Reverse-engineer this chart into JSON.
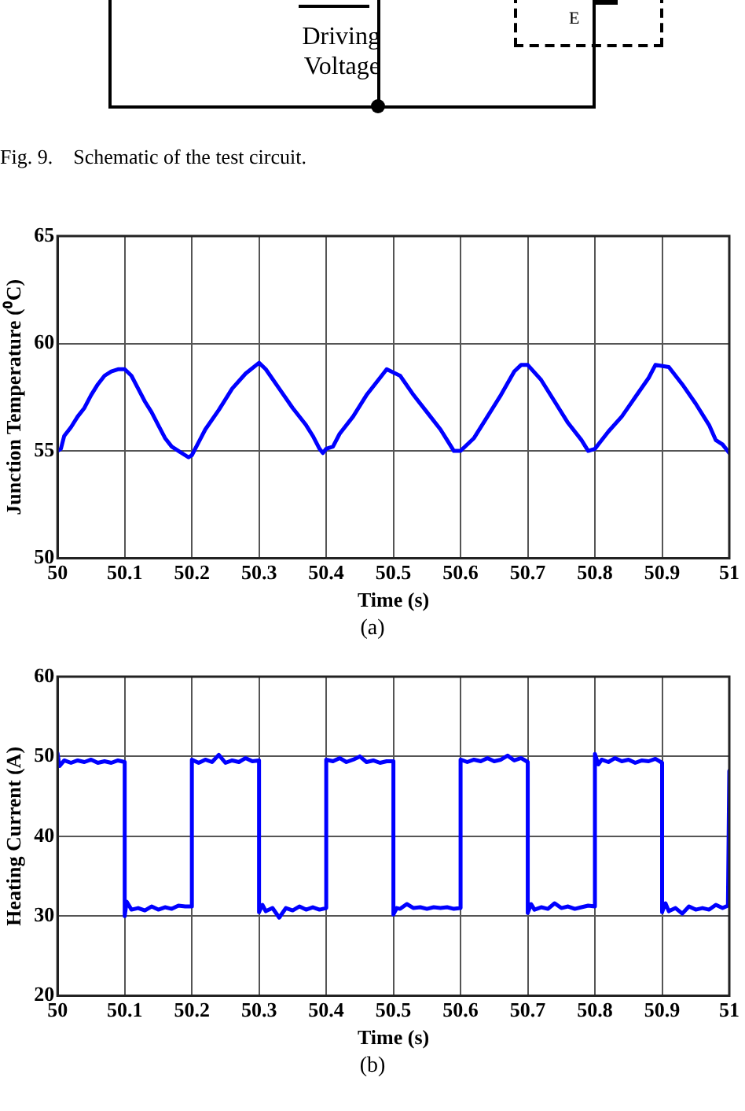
{
  "chart_data": [
    {
      "type": "other",
      "annotations": [
        "Driving Voltage",
        "E",
        "Fig. 9.    Schematic of the test circuit."
      ]
    },
    {
      "type": "line",
      "xlabel": "Time (s)",
      "ylabel": "Junction Temperature (⁰C)",
      "annotations": [
        "(a)"
      ],
      "grid": true,
      "xlim": [
        50,
        51
      ],
      "xticks": [
        50,
        50.1,
        50.2,
        50.3,
        50.4,
        50.5,
        50.6,
        50.7,
        50.8,
        50.9,
        51
      ],
      "ylim": [
        50,
        65
      ],
      "yticks": [
        50,
        55,
        60,
        65
      ],
      "x": [
        50,
        50.005,
        50.01,
        50.02,
        50.03,
        50.04,
        50.05,
        50.06,
        50.07,
        50.08,
        50.09,
        50.1,
        50.11,
        50.12,
        50.13,
        50.14,
        50.15,
        50.16,
        50.17,
        50.18,
        50.195,
        50.2,
        50.21,
        50.22,
        50.24,
        50.26,
        50.28,
        50.3,
        50.31,
        50.33,
        50.35,
        50.37,
        50.38,
        50.39,
        50.395,
        50.4,
        50.41,
        50.42,
        50.44,
        50.46,
        50.48,
        50.49,
        50.51,
        50.53,
        50.55,
        50.57,
        50.58,
        50.59,
        50.6,
        50.62,
        50.64,
        50.66,
        50.68,
        50.69,
        50.7,
        50.72,
        50.74,
        50.76,
        50.78,
        50.79,
        50.8,
        50.82,
        50.84,
        50.86,
        50.88,
        50.89,
        50.91,
        50.93,
        50.95,
        50.97,
        50.98,
        50.99,
        51
      ],
      "series": [
        {
          "color": "#0000ff",
          "values": [
            55,
            55.1,
            55.7,
            56.1,
            56.6,
            57,
            57.6,
            58.1,
            58.5,
            58.7,
            58.8,
            58.8,
            58.5,
            57.9,
            57.3,
            56.8,
            56.2,
            55.6,
            55.2,
            55,
            54.7,
            54.8,
            55.4,
            56,
            56.9,
            57.9,
            58.6,
            59.1,
            58.8,
            57.9,
            57,
            56.2,
            55.7,
            55.1,
            54.9,
            55.1,
            55.2,
            55.8,
            56.6,
            57.6,
            58.4,
            58.8,
            58.5,
            57.6,
            56.8,
            56,
            55.5,
            55,
            55,
            55.6,
            56.6,
            57.6,
            58.7,
            59,
            59,
            58.3,
            57.3,
            56.3,
            55.5,
            55,
            55.1,
            55.9,
            56.6,
            57.5,
            58.4,
            59,
            58.9,
            58.1,
            57.2,
            56.2,
            55.5,
            55.3,
            54.9
          ]
        }
      ]
    },
    {
      "type": "line",
      "xlabel": "Time (s)",
      "ylabel": "Heating Current (A)",
      "annotations": [
        "(b)"
      ],
      "grid": true,
      "xlim": [
        50,
        51
      ],
      "xticks": [
        50,
        50.1,
        50.2,
        50.3,
        50.4,
        50.5,
        50.6,
        50.7,
        50.8,
        50.9,
        51
      ],
      "ylim": [
        20,
        60
      ],
      "yticks": [
        20,
        30,
        40,
        50,
        60
      ],
      "x": [
        50,
        50.003,
        50.01,
        50.02,
        50.03,
        50.04,
        50.05,
        50.06,
        50.07,
        50.08,
        50.09,
        50.1,
        50.1,
        50.103,
        50.11,
        50.12,
        50.13,
        50.14,
        50.15,
        50.16,
        50.17,
        50.18,
        50.19,
        50.2,
        50.2,
        50.21,
        50.22,
        50.23,
        50.24,
        50.25,
        50.26,
        50.27,
        50.28,
        50.29,
        50.3,
        50.3,
        50.305,
        50.31,
        50.32,
        50.33,
        50.34,
        50.35,
        50.36,
        50.37,
        50.38,
        50.39,
        50.4,
        50.4,
        50.41,
        50.42,
        50.43,
        50.44,
        50.45,
        50.46,
        50.47,
        50.48,
        50.49,
        50.5,
        50.5,
        50.505,
        50.51,
        50.52,
        50.53,
        50.54,
        50.55,
        50.56,
        50.57,
        50.58,
        50.59,
        50.6,
        50.6,
        50.61,
        50.62,
        50.63,
        50.64,
        50.65,
        50.66,
        50.67,
        50.68,
        50.69,
        50.7,
        50.7,
        50.705,
        50.71,
        50.72,
        50.73,
        50.74,
        50.75,
        50.76,
        50.77,
        50.78,
        50.79,
        50.8,
        50.8,
        50.805,
        50.81,
        50.82,
        50.83,
        50.84,
        50.85,
        50.86,
        50.87,
        50.88,
        50.89,
        50.9,
        50.9,
        50.905,
        50.91,
        50.92,
        50.93,
        50.94,
        50.95,
        50.96,
        50.97,
        50.98,
        50.99,
        50.998,
        51
      ],
      "series": [
        {
          "color": "#0000ff",
          "values": [
            50.4,
            48.8,
            49.5,
            49.2,
            49.5,
            49.3,
            49.6,
            49.2,
            49.4,
            49.2,
            49.5,
            49.3,
            30,
            31.8,
            30.8,
            31,
            30.7,
            31.2,
            30.8,
            31.1,
            30.9,
            31.3,
            31.2,
            31.2,
            49.6,
            49.2,
            49.6,
            49.3,
            50.2,
            49.2,
            49.5,
            49.3,
            49.8,
            49.4,
            49.5,
            30.5,
            31.4,
            30.6,
            31,
            29.8,
            31,
            30.7,
            31.2,
            30.8,
            31.1,
            30.8,
            31,
            49.6,
            49.4,
            49.8,
            49.3,
            49.6,
            50,
            49.3,
            49.5,
            49.2,
            49.4,
            49.4,
            30.2,
            31,
            30.9,
            31.5,
            31,
            31.1,
            30.9,
            31.1,
            31,
            31.1,
            30.9,
            31,
            49.6,
            49.3,
            49.6,
            49.4,
            49.8,
            49.4,
            49.6,
            50.1,
            49.5,
            49.8,
            49.3,
            30.4,
            31.5,
            30.8,
            31.1,
            30.9,
            31.6,
            31,
            31.2,
            30.9,
            31.1,
            31.3,
            31.2,
            50.3,
            49,
            49.6,
            49.3,
            49.8,
            49.4,
            49.6,
            49.2,
            49.5,
            49.4,
            49.7,
            49.2,
            30.5,
            31.6,
            30.6,
            31,
            30.3,
            31.2,
            30.8,
            31,
            30.8,
            31.4,
            31,
            31.3,
            48.2
          ]
        }
      ]
    }
  ]
}
